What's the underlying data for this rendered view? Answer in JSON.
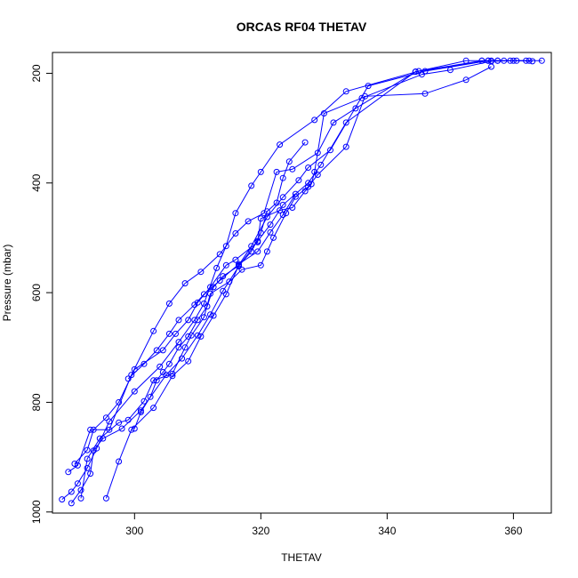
{
  "chart_data": {
    "type": "line",
    "title": "ORCAS RF04 THETAV",
    "xlabel": "THETAV",
    "ylabel": "Pressure (mbar)",
    "xlim": [
      287,
      366
    ],
    "ylim": [
      1002,
      162
    ],
    "y_reversed": true,
    "x_ticks": [
      300,
      320,
      340,
      360
    ],
    "y_ticks": [
      200,
      400,
      600,
      800,
      1000
    ],
    "grid": false,
    "legend": "none",
    "colors": {
      "series": "#0000ff"
    },
    "series": [
      {
        "points": [
          [
            288.5,
            977
          ],
          [
            290.0,
            963
          ],
          [
            291.0,
            948
          ],
          [
            292.5,
            920
          ],
          [
            294.0,
            884
          ],
          [
            296.0,
            835
          ],
          [
            300.0,
            780
          ],
          [
            304.0,
            735
          ],
          [
            307.0,
            690
          ],
          [
            309.5,
            650
          ],
          [
            311.0,
            620
          ],
          [
            313.0,
            555
          ],
          [
            314.5,
            515
          ],
          [
            316.0,
            455
          ],
          [
            318.5,
            405
          ],
          [
            320.0,
            380
          ],
          [
            323.0,
            330
          ],
          [
            328.5,
            285
          ],
          [
            333.5,
            233
          ],
          [
            345.0,
            196
          ],
          [
            352.5,
            177
          ],
          [
            355.0,
            177
          ],
          [
            357.5,
            177
          ],
          [
            360.0,
            177
          ],
          [
            362.0,
            177
          ],
          [
            364.5,
            177
          ]
        ]
      },
      {
        "points": [
          [
            289.5,
            927
          ],
          [
            291.0,
            915
          ],
          [
            293.0,
            850
          ],
          [
            296.0,
            850
          ],
          [
            299.5,
            750
          ],
          [
            303.0,
            670
          ],
          [
            305.5,
            620
          ],
          [
            308.0,
            583
          ],
          [
            310.5,
            562
          ],
          [
            313.5,
            530
          ],
          [
            316.0,
            492
          ],
          [
            318.0,
            470
          ],
          [
            320.5,
            455
          ],
          [
            322.5,
            380
          ],
          [
            325.0,
            375
          ],
          [
            329.0,
            345
          ],
          [
            331.5,
            290
          ],
          [
            335.0,
            264
          ],
          [
            344.5,
            197
          ],
          [
            355.0,
            177
          ],
          [
            356.5,
            177
          ],
          [
            359.5,
            177
          ],
          [
            362.5,
            177
          ]
        ]
      },
      {
        "points": [
          [
            290.0,
            984
          ],
          [
            291.5,
            960
          ],
          [
            293.0,
            930
          ],
          [
            293.5,
            888
          ],
          [
            295.0,
            866
          ],
          [
            298.0,
            848
          ],
          [
            301.0,
            815
          ],
          [
            305.0,
            750
          ],
          [
            307.5,
            720
          ],
          [
            310.0,
            678
          ],
          [
            312.0,
            640
          ],
          [
            314.0,
            597
          ],
          [
            316.5,
            552
          ],
          [
            319.5,
            506
          ],
          [
            321.5,
            476
          ],
          [
            323.5,
            440
          ],
          [
            327.5,
            400
          ],
          [
            329.5,
            367
          ],
          [
            333.5,
            290
          ],
          [
            344.5,
            197
          ],
          [
            356.0,
            177
          ],
          [
            358.5,
            177
          ]
        ]
      },
      {
        "points": [
          [
            290.5,
            912
          ],
          [
            292.5,
            887
          ],
          [
            293.5,
            850
          ],
          [
            295.5,
            828
          ],
          [
            297.5,
            800
          ],
          [
            300.0,
            740
          ],
          [
            304.5,
            705
          ],
          [
            306.5,
            675
          ],
          [
            308.5,
            650
          ],
          [
            310.0,
            618
          ],
          [
            312.0,
            590
          ],
          [
            314.5,
            550
          ],
          [
            316.0,
            540
          ],
          [
            319.5,
            508
          ],
          [
            320.0,
            465
          ],
          [
            323.0,
            450
          ],
          [
            325.0,
            445
          ],
          [
            327.0,
            415
          ],
          [
            328.0,
            402
          ],
          [
            328.5,
            380
          ],
          [
            330.0,
            273
          ],
          [
            336.0,
            245
          ],
          [
            345.5,
            202
          ],
          [
            350.0,
            194
          ],
          [
            356.5,
            178
          ],
          [
            360.5,
            177
          ],
          [
            363.0,
            178
          ]
        ]
      },
      {
        "points": [
          [
            291.5,
            975
          ],
          [
            292.5,
            903
          ],
          [
            294.5,
            866
          ],
          [
            297.5,
            837
          ],
          [
            299.0,
            832
          ],
          [
            301.5,
            798
          ],
          [
            303.0,
            760
          ],
          [
            306.0,
            748
          ],
          [
            308.0,
            700
          ],
          [
            309.0,
            678
          ],
          [
            311.0,
            645
          ],
          [
            312.0,
            602
          ],
          [
            315.0,
            580
          ],
          [
            317.0,
            558
          ],
          [
            320.0,
            550
          ],
          [
            321.0,
            525
          ],
          [
            322.0,
            500
          ],
          [
            324.0,
            455
          ],
          [
            325.5,
            425
          ],
          [
            327.5,
            407
          ],
          [
            329.0,
            385
          ],
          [
            333.5,
            334
          ],
          [
            336.5,
            242
          ],
          [
            346.0,
            237
          ],
          [
            352.5,
            212
          ],
          [
            356.5,
            188
          ]
        ]
      },
      {
        "points": [
          [
            295.5,
            975
          ],
          [
            297.5,
            908
          ],
          [
            299.5,
            850
          ],
          [
            303.0,
            810
          ],
          [
            306.0,
            752
          ],
          [
            308.5,
            725
          ],
          [
            310.5,
            680
          ],
          [
            312.5,
            642
          ],
          [
            314.5,
            603
          ],
          [
            316.5,
            550
          ],
          [
            318.5,
            515
          ],
          [
            321.0,
            462
          ],
          [
            323.5,
            426
          ],
          [
            326.0,
            395
          ],
          [
            327.5,
            372
          ],
          [
            331.0,
            340
          ],
          [
            337.0,
            223
          ],
          [
            346.0,
            196
          ],
          [
            356.0,
            177
          ],
          [
            357.5,
            177
          ]
        ]
      },
      {
        "points": [
          [
            300.0,
            848
          ],
          [
            301.0,
            818
          ],
          [
            302.5,
            790
          ],
          [
            303.5,
            760
          ],
          [
            304.5,
            745
          ],
          [
            305.5,
            730
          ],
          [
            307.0,
            700
          ],
          [
            308.5,
            680
          ],
          [
            310.0,
            650
          ],
          [
            311.5,
            625
          ],
          [
            312.5,
            590
          ],
          [
            314.0,
            570
          ],
          [
            316.5,
            551
          ],
          [
            318.5,
            525
          ],
          [
            320.0,
            491
          ],
          [
            321.0,
            452
          ],
          [
            322.5,
            436
          ],
          [
            323.5,
            391
          ],
          [
            324.5,
            361
          ],
          [
            327.0,
            326
          ]
        ]
      },
      {
        "points": [
          [
            299.0,
            757
          ],
          [
            301.5,
            730
          ],
          [
            303.5,
            705
          ],
          [
            305.5,
            675
          ],
          [
            307.0,
            650
          ],
          [
            309.5,
            622
          ],
          [
            311.0,
            603
          ],
          [
            313.5,
            578
          ],
          [
            316.5,
            548
          ],
          [
            319.5,
            525
          ],
          [
            321.5,
            490
          ],
          [
            323.5,
            458
          ],
          [
            325.5,
            420
          ]
        ]
      }
    ]
  }
}
